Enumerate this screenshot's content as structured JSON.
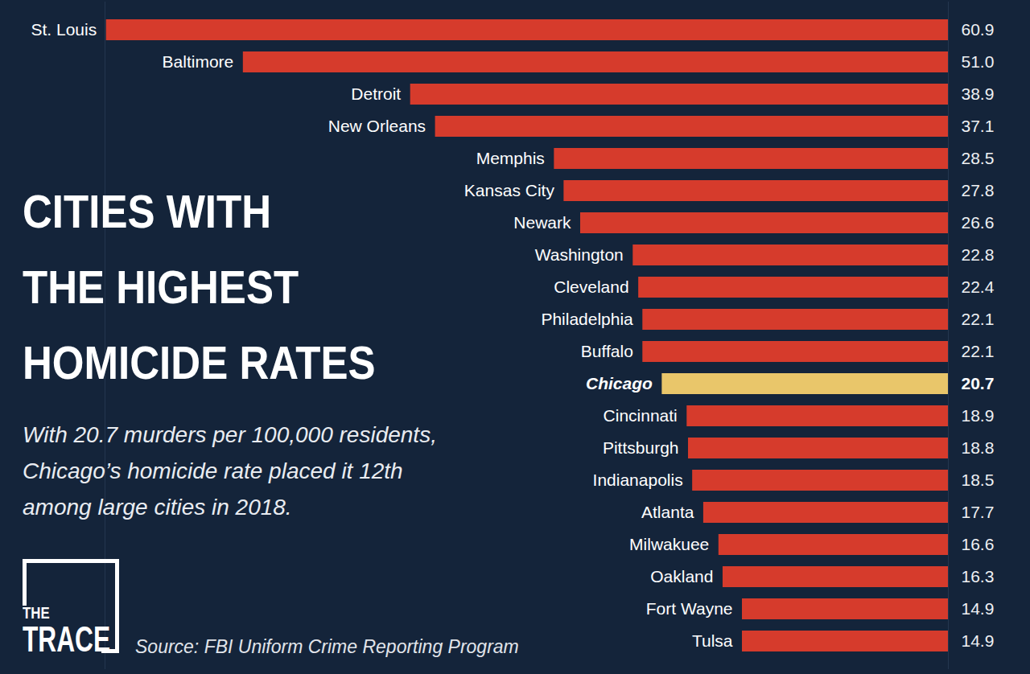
{
  "chart_data": {
    "type": "bar",
    "orientation": "horizontal",
    "title": "CITIES WITH\nTHE HIGHEST\nHOMICIDE RATES",
    "subtitle": "With 20.7 murders per 100,000 residents, Chicago’s homicide rate placed it 12th among large cities in 2018.",
    "source": "Source: FBI Uniform Crime Reporting Program",
    "logo": "THE TRACE",
    "categories": [
      "St. Louis",
      "Baltimore",
      "Detroit",
      "New Orleans",
      "Memphis",
      "Kansas City",
      "Newark",
      "Washington",
      "Cleveland",
      "Philadelphia",
      "Buffalo",
      "Chicago",
      "Cincinnati",
      "Pittsburgh",
      "Indianapolis",
      "Atlanta",
      "Milwakuee",
      "Oakland",
      "Fort Wayne",
      "Tulsa"
    ],
    "values": [
      60.9,
      51.0,
      38.9,
      37.1,
      28.5,
      27.8,
      26.6,
      22.8,
      22.4,
      22.1,
      22.1,
      20.7,
      18.9,
      18.8,
      18.5,
      17.7,
      16.6,
      16.3,
      14.9,
      14.9
    ],
    "value_labels": [
      "60.9",
      "51.0",
      "38.9",
      "37.1",
      "28.5",
      "27.8",
      "26.6",
      "22.8",
      "22.4",
      "22.1",
      "22.1",
      "20.7",
      "18.9",
      "18.8",
      "18.5",
      "17.7",
      "16.6",
      "16.3",
      "14.9",
      "14.9"
    ],
    "colors": [
      "#d63b2c",
      "#d63b2c",
      "#d63b2c",
      "#d63b2c",
      "#d63b2c",
      "#d63b2c",
      "#d63b2c",
      "#d63b2c",
      "#d63b2c",
      "#d63b2c",
      "#d63b2c",
      "#e9c66a",
      "#d63b2c",
      "#d63b2c",
      "#d63b2c",
      "#d63b2c",
      "#d63b2c",
      "#d63b2c",
      "#d63b2c",
      "#d63b2c"
    ],
    "xlim": [
      0,
      61
    ],
    "xticks": [],
    "tick_labels": "y",
    "data_labels": true,
    "grid": false
  }
}
